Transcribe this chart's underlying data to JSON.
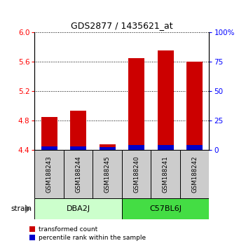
{
  "title": "GDS2877 / 1435621_at",
  "samples": [
    "GSM188243",
    "GSM188244",
    "GSM188245",
    "GSM188240",
    "GSM188241",
    "GSM188242"
  ],
  "groups": [
    {
      "label": "DBA2J",
      "indices": [
        0,
        1,
        2
      ],
      "color": "#CCFFCC"
    },
    {
      "label": "C57BL6J",
      "indices": [
        3,
        4,
        5
      ],
      "color": "#44DD44"
    }
  ],
  "baseline": 4.4,
  "red_tops": [
    4.85,
    4.93,
    4.48,
    5.65,
    5.75,
    5.6
  ],
  "blue_tops": [
    4.445,
    4.445,
    4.435,
    4.47,
    4.47,
    4.47
  ],
  "ylim_left": [
    4.4,
    6.0
  ],
  "ylim_right": [
    0,
    100
  ],
  "yticks_left": [
    4.4,
    4.8,
    5.2,
    5.6,
    6.0
  ],
  "yticks_right": [
    0,
    25,
    50,
    75,
    100
  ],
  "ytick_labels_right": [
    "0",
    "25",
    "50",
    "75",
    "100%"
  ],
  "bar_width": 0.55,
  "red_color": "#CC0000",
  "blue_color": "#0000CC",
  "sample_area_color": "#CCCCCC",
  "legend_red": "transformed count",
  "legend_blue": "percentile rank within the sample",
  "strain_label": "strain"
}
